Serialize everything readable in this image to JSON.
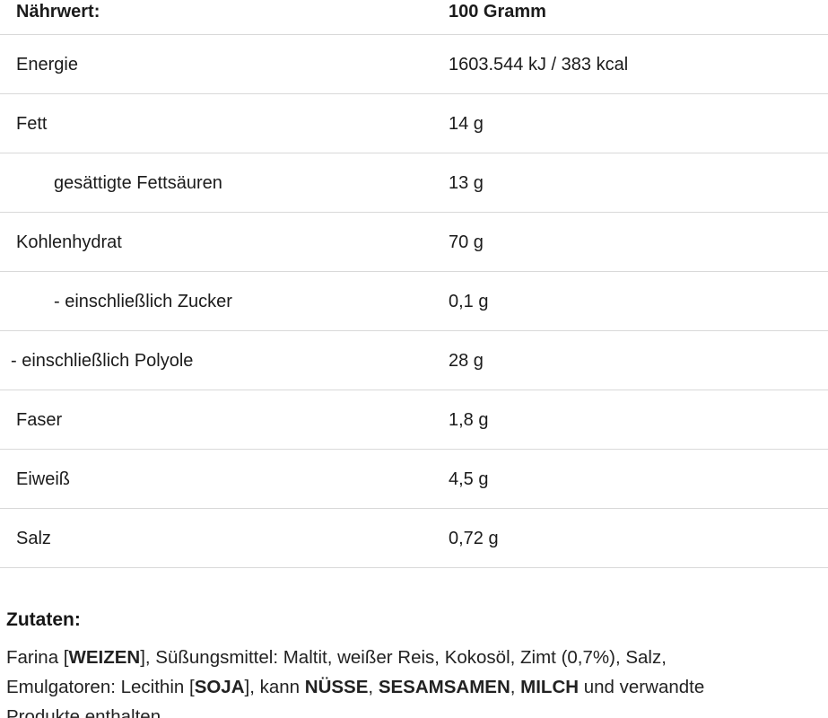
{
  "table": {
    "header": {
      "label": "Nährwert:",
      "value": "100 Gramm"
    },
    "rows": [
      {
        "label": "Energie",
        "value": "1603.544 kJ / 383 kcal",
        "indent": "none"
      },
      {
        "label": "Fett",
        "value": "14 g",
        "indent": "none"
      },
      {
        "label": "gesättigte Fettsäuren",
        "value": "13 g",
        "indent": "sub"
      },
      {
        "label": "Kohlenhydrat",
        "value": "70 g",
        "indent": "none"
      },
      {
        "label": "- einschließlich Zucker",
        "value": "0,1 g",
        "indent": "sub"
      },
      {
        "label": "- einschließlich Polyole",
        "value": "28 g",
        "indent": "flush"
      },
      {
        "label": "Faser",
        "value": "1,8 g",
        "indent": "none"
      },
      {
        "label": "Eiweiß",
        "value": "4,5 g",
        "indent": "none"
      },
      {
        "label": "Salz",
        "value": "0,72 g",
        "indent": "none"
      }
    ]
  },
  "ingredients": {
    "heading": "Zutaten:",
    "lines": [
      [
        {
          "t": "Farina [",
          "b": false
        },
        {
          "t": "WEIZEN",
          "b": true
        },
        {
          "t": "], Süßungsmittel: Maltit, weißer Reis, Kokosöl, Zimt (0,7%), Salz,",
          "b": false
        }
      ],
      [
        {
          "t": "Emulgatoren: Lecithin [",
          "b": false
        },
        {
          "t": "SOJA",
          "b": true
        },
        {
          "t": "], kann ",
          "b": false
        },
        {
          "t": "NÜSSE",
          "b": true
        },
        {
          "t": ", ",
          "b": false
        },
        {
          "t": "SESAMSAMEN",
          "b": true
        },
        {
          "t": ", ",
          "b": false
        },
        {
          "t": "MILCH",
          "b": true
        },
        {
          "t": " und verwandte",
          "b": false
        }
      ],
      [
        {
          "t": "Produkte enthalten",
          "b": false
        }
      ]
    ]
  },
  "colors": {
    "divider": "#d9d9d9",
    "text": "#1b1b1b"
  }
}
